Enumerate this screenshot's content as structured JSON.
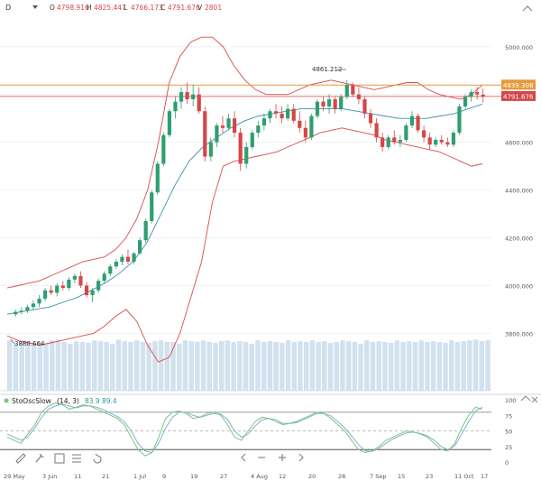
{
  "toolbar": {
    "symbol": "D",
    "ohlc": [
      {
        "k": "O",
        "v": "4798.916"
      },
      {
        "k": "H",
        "v": "4825.447"
      },
      {
        "k": "L",
        "v": "4766.173"
      },
      {
        "k": "C",
        "v": "4791.676"
      },
      {
        "k": "V",
        "v": "2801"
      }
    ]
  },
  "indicator": {
    "name": "StoOscSlow",
    "params": "(14, 3)",
    "k_value": "83.9",
    "d_value": "89.4"
  },
  "annotations": {
    "high_label": "4861.212",
    "low_label": "3880.664"
  },
  "price_tags": {
    "resistance": "4839.308",
    "close": "4791.676"
  },
  "colors": {
    "up": "#2f9e71",
    "down": "#d54748",
    "bollinger": "#d94a4a",
    "mid_band": "#3a8fb0",
    "volume": "#c7d9ea",
    "resistance_line": "#e49a3c",
    "close_line": "#d54748",
    "stoch_k": "#7bc67b",
    "stoch_d": "#7fb0d6"
  },
  "chart_data": {
    "type": "candlestick",
    "y_axis_ticks": [
      3800,
      4000,
      4200,
      4400,
      4600,
      4800,
      5000
    ],
    "y_axis_labels": [
      "3800.000",
      "4000.000",
      "4200.000",
      "4400.000",
      "4600.000",
      "4800.000",
      "5000.000"
    ],
    "ylim": [
      3590,
      5120
    ],
    "x_labels": [
      "29 May",
      "3 Jun",
      "11",
      "21",
      "1 Jul",
      "9",
      "19",
      "27",
      "4 Aug",
      "12",
      "20",
      "28",
      "7 Sep",
      "15",
      "23",
      "11 Oct",
      "17"
    ],
    "horizontal_lines": [
      {
        "value": 4839.308,
        "name": "resistance"
      },
      {
        "value": 4791.676,
        "name": "last close"
      }
    ],
    "candles": [
      {
        "o": 3880,
        "h": 3900,
        "l": 3870,
        "c": 3890
      },
      {
        "o": 3890,
        "h": 3910,
        "l": 3880,
        "c": 3895
      },
      {
        "o": 3895,
        "h": 3920,
        "l": 3885,
        "c": 3910
      },
      {
        "o": 3910,
        "h": 3940,
        "l": 3900,
        "c": 3925
      },
      {
        "o": 3925,
        "h": 3960,
        "l": 3910,
        "c": 3945
      },
      {
        "o": 3945,
        "h": 3990,
        "l": 3935,
        "c": 3980
      },
      {
        "o": 3980,
        "h": 4000,
        "l": 3960,
        "c": 3970
      },
      {
        "o": 3970,
        "h": 4010,
        "l": 3955,
        "c": 4000
      },
      {
        "o": 4000,
        "h": 4020,
        "l": 3980,
        "c": 3990
      },
      {
        "o": 3990,
        "h": 4035,
        "l": 3980,
        "c": 4025
      },
      {
        "o": 4025,
        "h": 4050,
        "l": 4010,
        "c": 4040
      },
      {
        "o": 4040,
        "h": 4060,
        "l": 3990,
        "c": 4000
      },
      {
        "o": 4000,
        "h": 4015,
        "l": 3950,
        "c": 3960
      },
      {
        "o": 3960,
        "h": 3990,
        "l": 3930,
        "c": 3980
      },
      {
        "o": 3980,
        "h": 4030,
        "l": 3970,
        "c": 4020
      },
      {
        "o": 4020,
        "h": 4060,
        "l": 4010,
        "c": 4050
      },
      {
        "o": 4050,
        "h": 4090,
        "l": 4040,
        "c": 4080
      },
      {
        "o": 4080,
        "h": 4110,
        "l": 4070,
        "c": 4100
      },
      {
        "o": 4100,
        "h": 4130,
        "l": 4085,
        "c": 4120
      },
      {
        "o": 4120,
        "h": 4150,
        "l": 4090,
        "c": 4100
      },
      {
        "o": 4100,
        "h": 4140,
        "l": 4090,
        "c": 4135
      },
      {
        "o": 4135,
        "h": 4200,
        "l": 4130,
        "c": 4190
      },
      {
        "o": 4190,
        "h": 4280,
        "l": 4180,
        "c": 4270
      },
      {
        "o": 4270,
        "h": 4400,
        "l": 4260,
        "c": 4390
      },
      {
        "o": 4390,
        "h": 4520,
        "l": 4380,
        "c": 4510
      },
      {
        "o": 4510,
        "h": 4640,
        "l": 4500,
        "c": 4630
      },
      {
        "o": 4630,
        "h": 4740,
        "l": 4620,
        "c": 4730
      },
      {
        "o": 4730,
        "h": 4790,
        "l": 4700,
        "c": 4770
      },
      {
        "o": 4770,
        "h": 4830,
        "l": 4740,
        "c": 4810
      },
      {
        "o": 4810,
        "h": 4850,
        "l": 4760,
        "c": 4780
      },
      {
        "o": 4780,
        "h": 4840,
        "l": 4750,
        "c": 4800
      },
      {
        "o": 4800,
        "h": 4830,
        "l": 4720,
        "c": 4730
      },
      {
        "o": 4730,
        "h": 4750,
        "l": 4520,
        "c": 4540
      },
      {
        "o": 4540,
        "h": 4620,
        "l": 4520,
        "c": 4600
      },
      {
        "o": 4600,
        "h": 4680,
        "l": 4580,
        "c": 4670
      },
      {
        "o": 4670,
        "h": 4710,
        "l": 4640,
        "c": 4660
      },
      {
        "o": 4660,
        "h": 4720,
        "l": 4650,
        "c": 4700
      },
      {
        "o": 4700,
        "h": 4730,
        "l": 4620,
        "c": 4640
      },
      {
        "o": 4640,
        "h": 4660,
        "l": 4480,
        "c": 4510
      },
      {
        "o": 4510,
        "h": 4600,
        "l": 4490,
        "c": 4580
      },
      {
        "o": 4580,
        "h": 4650,
        "l": 4570,
        "c": 4640
      },
      {
        "o": 4640,
        "h": 4690,
        "l": 4620,
        "c": 4670
      },
      {
        "o": 4670,
        "h": 4720,
        "l": 4650,
        "c": 4700
      },
      {
        "o": 4700,
        "h": 4740,
        "l": 4680,
        "c": 4730
      },
      {
        "o": 4730,
        "h": 4760,
        "l": 4700,
        "c": 4720
      },
      {
        "o": 4720,
        "h": 4750,
        "l": 4680,
        "c": 4700
      },
      {
        "o": 4700,
        "h": 4760,
        "l": 4690,
        "c": 4740
      },
      {
        "o": 4740,
        "h": 4760,
        "l": 4680,
        "c": 4690
      },
      {
        "o": 4690,
        "h": 4730,
        "l": 4640,
        "c": 4660
      },
      {
        "o": 4660,
        "h": 4690,
        "l": 4600,
        "c": 4620
      },
      {
        "o": 4620,
        "h": 4720,
        "l": 4610,
        "c": 4710
      },
      {
        "o": 4710,
        "h": 4780,
        "l": 4700,
        "c": 4770
      },
      {
        "o": 4770,
        "h": 4790,
        "l": 4730,
        "c": 4750
      },
      {
        "o": 4750,
        "h": 4800,
        "l": 4720,
        "c": 4780
      },
      {
        "o": 4780,
        "h": 4790,
        "l": 4720,
        "c": 4740
      },
      {
        "o": 4740,
        "h": 4800,
        "l": 4730,
        "c": 4790
      },
      {
        "o": 4790,
        "h": 4861,
        "l": 4780,
        "c": 4840
      },
      {
        "o": 4840,
        "h": 4850,
        "l": 4790,
        "c": 4800
      },
      {
        "o": 4800,
        "h": 4830,
        "l": 4760,
        "c": 4780
      },
      {
        "o": 4780,
        "h": 4790,
        "l": 4700,
        "c": 4720
      },
      {
        "o": 4720,
        "h": 4740,
        "l": 4660,
        "c": 4680
      },
      {
        "o": 4680,
        "h": 4700,
        "l": 4600,
        "c": 4620
      },
      {
        "o": 4620,
        "h": 4640,
        "l": 4560,
        "c": 4580
      },
      {
        "o": 4580,
        "h": 4630,
        "l": 4570,
        "c": 4620
      },
      {
        "o": 4620,
        "h": 4650,
        "l": 4590,
        "c": 4600
      },
      {
        "o": 4600,
        "h": 4630,
        "l": 4580,
        "c": 4610
      },
      {
        "o": 4610,
        "h": 4680,
        "l": 4600,
        "c": 4670
      },
      {
        "o": 4670,
        "h": 4730,
        "l": 4660,
        "c": 4710
      },
      {
        "o": 4710,
        "h": 4720,
        "l": 4640,
        "c": 4650
      },
      {
        "o": 4650,
        "h": 4670,
        "l": 4600,
        "c": 4620
      },
      {
        "o": 4620,
        "h": 4640,
        "l": 4570,
        "c": 4590
      },
      {
        "o": 4590,
        "h": 4620,
        "l": 4580,
        "c": 4610
      },
      {
        "o": 4610,
        "h": 4630,
        "l": 4590,
        "c": 4600
      },
      {
        "o": 4600,
        "h": 4620,
        "l": 4580,
        "c": 4590
      },
      {
        "o": 4590,
        "h": 4650,
        "l": 4580,
        "c": 4640
      },
      {
        "o": 4640,
        "h": 4760,
        "l": 4630,
        "c": 4750
      },
      {
        "o": 4750,
        "h": 4800,
        "l": 4740,
        "c": 4790
      },
      {
        "o": 4790,
        "h": 4820,
        "l": 4770,
        "c": 4810
      },
      {
        "o": 4810,
        "h": 4830,
        "l": 4780,
        "c": 4800
      },
      {
        "o": 4799,
        "h": 4825,
        "l": 4766,
        "c": 4792
      }
    ],
    "bollinger_upper": [
      3990,
      4000,
      4010,
      4020,
      4040,
      4060,
      4080,
      4100,
      4110,
      4120,
      4150,
      4200,
      4280,
      4400,
      4600,
      4850,
      4960,
      5020,
      5040,
      5040,
      5000,
      4920,
      4860,
      4820,
      4800,
      4800,
      4800,
      4820,
      4840,
      4850,
      4860,
      4850,
      4840,
      4830,
      4820,
      4830,
      4840,
      4850,
      4850,
      4820,
      4800,
      4790,
      4780,
      4800,
      4840
    ],
    "bollinger_lower": [
      3790,
      3770,
      3760,
      3750,
      3760,
      3770,
      3780,
      3790,
      3800,
      3830,
      3870,
      3900,
      3850,
      3750,
      3680,
      3700,
      3800,
      3950,
      4100,
      4350,
      4500,
      4520,
      4530,
      4540,
      4550,
      4560,
      4580,
      4600,
      4620,
      4640,
      4650,
      4660,
      4650,
      4640,
      4630,
      4610,
      4600,
      4590,
      4580,
      4570,
      4560,
      4540,
      4520,
      4500,
      4510
    ],
    "bollinger_middle": [
      3880,
      3890,
      3900,
      3910,
      3930,
      3950,
      3980,
      4010,
      4050,
      4100,
      4180,
      4300,
      4420,
      4520,
      4580,
      4620,
      4660,
      4690,
      4710,
      4720,
      4730,
      4740,
      4740,
      4740,
      4740,
      4730,
      4720,
      4710,
      4700,
      4700,
      4700,
      4710,
      4720,
      4740,
      4760
    ],
    "volume": [
      0.62,
      0.58,
      0.6,
      0.61,
      0.57,
      0.6,
      0.59,
      0.62,
      0.63,
      0.6,
      0.58,
      0.61,
      0.6,
      0.59,
      0.62,
      0.61,
      0.6,
      0.58,
      0.63,
      0.61,
      0.6,
      0.62,
      0.6,
      0.59,
      0.61,
      0.62,
      0.6,
      0.6,
      0.58,
      0.62,
      0.61,
      0.6,
      0.62,
      0.6,
      0.59,
      0.61,
      0.62,
      0.6,
      0.61,
      0.6,
      0.58,
      0.62,
      0.6,
      0.61,
      0.6,
      0.59,
      0.62,
      0.6,
      0.61,
      0.6,
      0.62,
      0.6,
      0.61,
      0.59,
      0.6,
      0.62,
      0.61,
      0.6,
      0.58,
      0.62,
      0.6,
      0.61,
      0.6,
      0.59,
      0.62,
      0.6,
      0.61,
      0.6,
      0.62,
      0.6,
      0.61,
      0.6,
      0.59,
      0.62,
      0.6,
      0.61,
      0.62,
      0.63,
      0.61,
      0.62
    ],
    "stochastic": {
      "yaxis": [
        100,
        75,
        50,
        25,
        0
      ],
      "levels": [
        80,
        20,
        50
      ],
      "k": [
        40,
        35,
        30,
        45,
        60,
        80,
        90,
        95,
        92,
        85,
        88,
        92,
        90,
        85,
        80,
        75,
        70,
        60,
        40,
        20,
        10,
        15,
        40,
        70,
        80,
        82,
        78,
        70,
        72,
        78,
        80,
        75,
        60,
        40,
        35,
        50,
        65,
        72,
        70,
        65,
        60,
        62,
        65,
        70,
        75,
        80,
        78,
        70,
        60,
        50,
        35,
        20,
        15,
        18,
        25,
        35,
        40,
        45,
        50,
        48,
        45,
        40,
        30,
        20,
        18,
        30,
        55,
        75,
        88,
        85
      ],
      "d": [
        45,
        40,
        35,
        40,
        55,
        72,
        85,
        90,
        93,
        90,
        87,
        90,
        90,
        88,
        84,
        78,
        73,
        65,
        50,
        30,
        18,
        15,
        30,
        55,
        72,
        80,
        80,
        75,
        72,
        75,
        78,
        77,
        68,
        50,
        40,
        45,
        58,
        68,
        70,
        68,
        62,
        62,
        63,
        68,
        73,
        78,
        78,
        74,
        65,
        55,
        42,
        28,
        18,
        17,
        22,
        30,
        37,
        42,
        47,
        48,
        46,
        42,
        35,
        25,
        20,
        26,
        45,
        65,
        82,
        88
      ]
    }
  }
}
